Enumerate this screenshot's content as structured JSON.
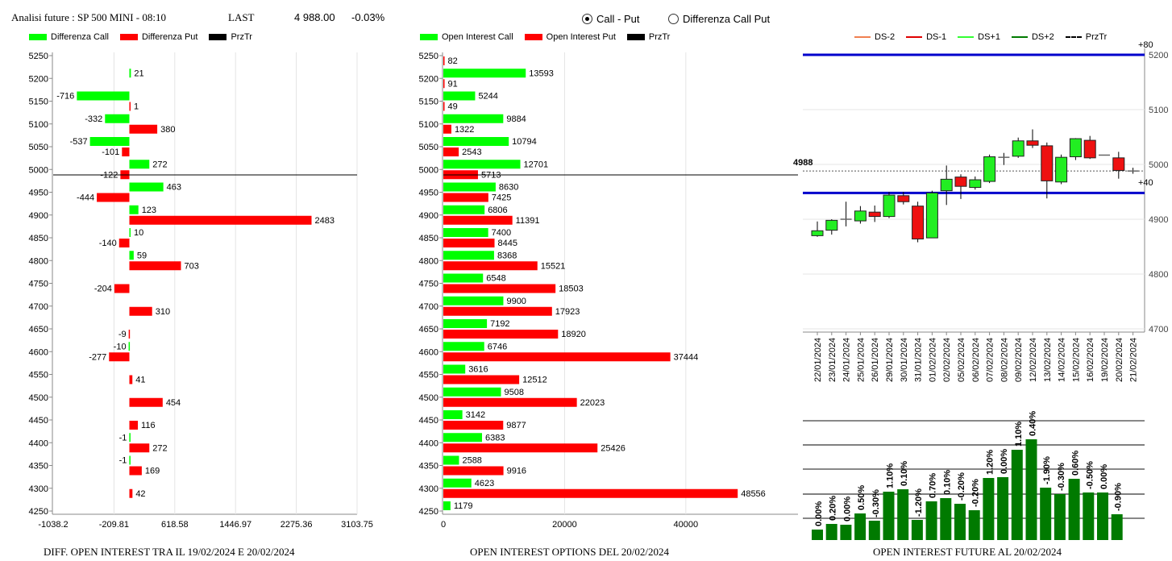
{
  "header": {
    "title": "Analisi future : SP 500 MINI - 08:10",
    "last_label": "LAST",
    "last_value": "4 988.00",
    "change": "-0.03%"
  },
  "radio": {
    "options": [
      {
        "label": "Call - Put",
        "selected": true
      },
      {
        "label": "Differenza Call Put",
        "selected": false
      }
    ]
  },
  "colors": {
    "call": "#00ff00",
    "put": "#ff0000",
    "przTr": "#000000",
    "blue": "#0000cc",
    "bar": "#007a00"
  },
  "chart_data": [
    {
      "type": "bar",
      "title": "DIFF. OPEN INTEREST TRA IL 19/02/2024 E 20/02/2024",
      "legend": [
        "Differenza Call",
        "Differenza Put",
        "PrzTr"
      ],
      "strikes": [
        5250,
        5200,
        5150,
        5100,
        5050,
        5000,
        4950,
        4900,
        4850,
        4800,
        4750,
        4700,
        4650,
        4600,
        4550,
        4500,
        4450,
        4400,
        4350,
        4300,
        4250
      ],
      "ylim": [
        4250,
        5250
      ],
      "xticks": [
        "-1038.2",
        "-209.81",
        "618.58",
        "1446.97",
        "2275.36",
        "3103.75"
      ],
      "xlim": [
        -1038.2,
        3103.75
      ],
      "przTr": 4988,
      "series": [
        {
          "name": "Differenza Call",
          "values": [
            null,
            21,
            -716,
            -332,
            -537,
            272,
            463,
            123,
            10,
            59,
            null,
            null,
            null,
            -10,
            null,
            null,
            null,
            -1,
            -1,
            null,
            null
          ]
        },
        {
          "name": "Differenza Put",
          "values": [
            null,
            null,
            1,
            380,
            -101,
            -122,
            -444,
            2483,
            -140,
            703,
            -204,
            310,
            -9,
            -277,
            41,
            454,
            116,
            272,
            169,
            42,
            null
          ]
        }
      ]
    },
    {
      "type": "bar",
      "title": "OPEN INTEREST OPTIONS DEL 20/02/2024",
      "legend": [
        "Open Interest Call",
        "Open Interest Put",
        "PrzTr"
      ],
      "strikes": [
        5250,
        5200,
        5150,
        5100,
        5050,
        5000,
        4950,
        4900,
        4850,
        4800,
        4750,
        4700,
        4650,
        4600,
        4550,
        4500,
        4450,
        4400,
        4350,
        4300,
        4250
      ],
      "ylim": [
        4250,
        5250
      ],
      "xticks": [
        "0",
        "20000",
        "40000"
      ],
      "xlim": [
        0,
        58500
      ],
      "przTr": 4988,
      "series": [
        {
          "name": "Open Interest Call",
          "values": [
            null,
            13593,
            5244,
            9884,
            10794,
            12701,
            8630,
            6806,
            7400,
            8368,
            6548,
            9900,
            7192,
            6746,
            3616,
            9508,
            3142,
            6383,
            2588,
            4623,
            1179
          ]
        },
        {
          "name": "Open Interest Put",
          "values": [
            82,
            91,
            49,
            1322,
            2543,
            5713,
            7425,
            11391,
            8445,
            15521,
            18503,
            17923,
            18920,
            37444,
            12512,
            22023,
            9877,
            25426,
            9916,
            48556,
            null
          ]
        }
      ]
    },
    {
      "type": "candlestick",
      "legend": [
        "DS-2",
        "DS-1",
        "DS+1",
        "DS+2",
        "PrzTr"
      ],
      "legend_colors": [
        "#f08050",
        "#e00000",
        "#33ff33",
        "#007a00",
        "#000000"
      ],
      "yticks": [
        "5200",
        "5100",
        "5000",
        "4900",
        "4800",
        "4700"
      ],
      "ylim": [
        4700,
        5200
      ],
      "price_label": "4988",
      "price": 4988,
      "levels": [
        {
          "value": 5200,
          "label": "+80"
        },
        {
          "value": 4948,
          "label": "+40"
        }
      ],
      "dates": [
        "22/01/2024",
        "23/01/2024",
        "24/01/2024",
        "25/01/2024",
        "26/01/2024",
        "29/01/2024",
        "30/01/2024",
        "31/01/2024",
        "01/02/2024",
        "02/02/2024",
        "05/02/2024",
        "06/02/2024",
        "07/02/2024",
        "08/02/2024",
        "09/02/2024",
        "12/02/2024",
        "13/02/2024",
        "14/02/2024",
        "15/02/2024",
        "16/02/2024",
        "19/02/2024",
        "20/02/2024",
        "21/02/2024"
      ],
      "ohlc": [
        [
          4870,
          4896,
          4868,
          4879
        ],
        [
          4880,
          4900,
          4872,
          4898
        ],
        [
          4900,
          4932,
          4887,
          4900
        ],
        [
          4897,
          4924,
          4892,
          4915
        ],
        [
          4913,
          4925,
          4895,
          4905
        ],
        [
          4905,
          4950,
          4902,
          4944
        ],
        [
          4943,
          4950,
          4927,
          4932
        ],
        [
          4924,
          4932,
          4858,
          4864
        ],
        [
          4866,
          4952,
          4866,
          4948
        ],
        [
          4952,
          4998,
          4926,
          4973
        ],
        [
          4977,
          4982,
          4937,
          4960
        ],
        [
          4958,
          4978,
          4954,
          4972
        ],
        [
          4969,
          5018,
          4966,
          5014
        ],
        [
          5013,
          5021,
          4999,
          5013
        ],
        [
          5015,
          5049,
          5012,
          5043
        ],
        [
          5043,
          5064,
          5030,
          5035
        ],
        [
          5034,
          5040,
          4938,
          4970
        ],
        [
          4968,
          5018,
          4964,
          5013
        ],
        [
          5014,
          5048,
          5008,
          5047
        ],
        [
          5044,
          5052,
          5010,
          5012
        ],
        [
          5017,
          5017,
          5017,
          5017
        ],
        [
          5012,
          5023,
          4974,
          4989
        ],
        [
          4988,
          4994,
          4983,
          4988
        ]
      ]
    },
    {
      "type": "bar",
      "title": "OPEN INTEREST FUTURE AL 20/02/2024",
      "labels": [
        "0.00%",
        "0.20%",
        "0.00%",
        "0.50%",
        "-0.30%",
        "1.10%",
        "0.10%",
        "-1.20%",
        "0.70%",
        "0.10%",
        "-0.20%",
        "-0.20%",
        "1.20%",
        "0.00%",
        "1.10%",
        "0.40%",
        "-1.90%",
        "-0.30%",
        "0.60%",
        "-0.50%",
        "0.00%",
        "-0.90%"
      ],
      "values": [
        13,
        20,
        19,
        33,
        24,
        60,
        63,
        25,
        48,
        52,
        45,
        37,
        77,
        78,
        112,
        125,
        65,
        57,
        76,
        59,
        59,
        32
      ],
      "ylim": [
        0,
        150
      ]
    }
  ]
}
